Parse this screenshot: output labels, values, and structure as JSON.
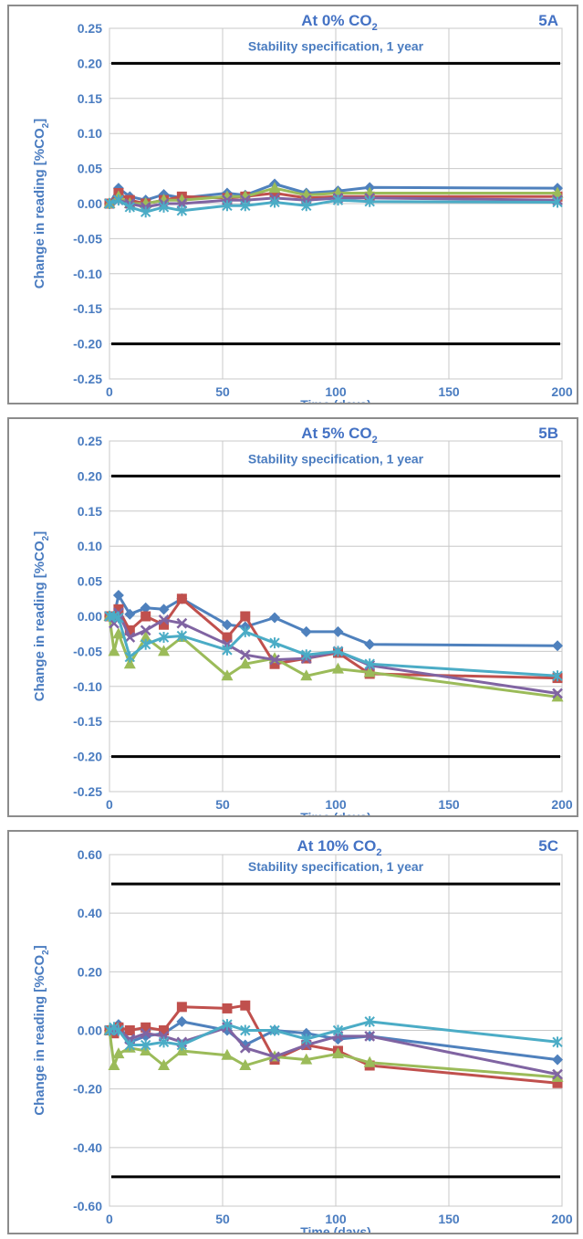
{
  "chart_data": [
    {
      "id": "5A",
      "type": "line",
      "title_main": "At 0% CO",
      "title_sub": "2",
      "tag": "5A",
      "xlabel": "Time (days)",
      "ylabel_main": "Change in reading [%CO",
      "ylabel_sub": "2",
      "ylabel_end": "]",
      "annotation": "Stability specification, 1 year",
      "spec_lines": [
        0.2,
        -0.2
      ],
      "xlim": [
        0,
        200
      ],
      "ylim": [
        -0.25,
        0.25
      ],
      "xticks": [
        "0",
        "50",
        "100",
        "150",
        "200"
      ],
      "yticks": [
        "0.25",
        "0.20",
        "0.15",
        "0.10",
        "0.05",
        "0.00",
        "-0.05",
        "-0.10",
        "-0.15",
        "-0.20",
        "-0.25"
      ],
      "grid": true,
      "series": [
        {
          "color": "#4f81bd",
          "marker": "diamond",
          "x": [
            0,
            4,
            9,
            16,
            24,
            32,
            52,
            60,
            73,
            87,
            101,
            115,
            198
          ],
          "y": [
            0.0,
            0.022,
            0.01,
            0.005,
            0.013,
            0.008,
            0.015,
            0.012,
            0.028,
            0.015,
            0.018,
            0.023,
            0.022
          ]
        },
        {
          "color": "#c0504d",
          "marker": "square",
          "x": [
            0,
            4,
            9,
            16,
            24,
            32,
            52,
            60,
            73,
            87,
            101,
            115,
            198
          ],
          "y": [
            0.0,
            0.015,
            0.005,
            0.0,
            0.005,
            0.01,
            0.008,
            0.01,
            0.015,
            0.008,
            0.01,
            0.01,
            0.01
          ]
        },
        {
          "color": "#9bbb59",
          "marker": "triangle",
          "x": [
            0,
            4,
            9,
            16,
            24,
            32,
            52,
            60,
            73,
            87,
            101,
            115,
            198
          ],
          "y": [
            0.0,
            0.01,
            0.0,
            0.0,
            0.005,
            0.005,
            0.01,
            0.01,
            0.022,
            0.012,
            0.015,
            0.015,
            0.015
          ]
        },
        {
          "color": "#8064a2",
          "marker": "x",
          "x": [
            0,
            4,
            9,
            16,
            24,
            32,
            52,
            60,
            73,
            87,
            101,
            115,
            198
          ],
          "y": [
            0.0,
            0.005,
            0.0,
            -0.005,
            0.0,
            0.0,
            0.005,
            0.005,
            0.008,
            0.005,
            0.008,
            0.008,
            0.005
          ]
        },
        {
          "color": "#4bacc6",
          "marker": "star",
          "x": [
            0,
            4,
            9,
            16,
            24,
            32,
            52,
            60,
            73,
            87,
            101,
            115,
            198
          ],
          "y": [
            0.0,
            0.005,
            -0.005,
            -0.012,
            -0.005,
            -0.01,
            -0.003,
            -0.003,
            0.002,
            -0.003,
            0.005,
            0.003,
            0.002
          ]
        }
      ]
    },
    {
      "id": "5B",
      "type": "line",
      "title_main": "At 5% CO",
      "title_sub": "2",
      "tag": "5B",
      "xlabel": "Time (days)",
      "ylabel_main": "Change in reading [%CO",
      "ylabel_sub": "2",
      "ylabel_end": "]",
      "annotation": "Stability specification, 1 year",
      "spec_lines": [
        0.2,
        -0.2
      ],
      "xlim": [
        0,
        200
      ],
      "ylim": [
        -0.25,
        0.25
      ],
      "xticks": [
        "0",
        "50",
        "100",
        "150",
        "200"
      ],
      "yticks": [
        "0.25",
        "0.20",
        "0.15",
        "0.10",
        "0.05",
        "0.00",
        "-0.05",
        "-0.10",
        "-0.15",
        "-0.20",
        "-0.25"
      ],
      "grid": true,
      "series": [
        {
          "color": "#4f81bd",
          "marker": "diamond",
          "x": [
            0,
            2,
            4,
            9,
            16,
            24,
            32,
            52,
            60,
            73,
            87,
            101,
            115,
            198
          ],
          "y": [
            0.0,
            0.0,
            0.03,
            0.003,
            0.012,
            0.01,
            0.025,
            -0.012,
            -0.015,
            -0.002,
            -0.022,
            -0.022,
            -0.04,
            -0.042
          ]
        },
        {
          "color": "#c0504d",
          "marker": "square",
          "x": [
            0,
            2,
            4,
            9,
            16,
            24,
            32,
            52,
            60,
            73,
            87,
            101,
            115,
            198
          ],
          "y": [
            0.0,
            0.0,
            0.01,
            -0.02,
            0.0,
            -0.012,
            0.025,
            -0.03,
            0.0,
            -0.068,
            -0.06,
            -0.052,
            -0.082,
            -0.088
          ]
        },
        {
          "color": "#9bbb59",
          "marker": "triangle",
          "x": [
            0,
            2,
            4,
            9,
            16,
            24,
            32,
            52,
            60,
            73,
            87,
            101,
            115,
            198
          ],
          "y": [
            0.0,
            -0.05,
            -0.025,
            -0.068,
            -0.03,
            -0.05,
            -0.03,
            -0.085,
            -0.068,
            -0.06,
            -0.085,
            -0.075,
            -0.08,
            -0.115
          ]
        },
        {
          "color": "#8064a2",
          "marker": "x",
          "x": [
            0,
            2,
            4,
            9,
            16,
            24,
            32,
            52,
            60,
            73,
            87,
            101,
            115,
            198
          ],
          "y": [
            0.0,
            -0.01,
            0.005,
            -0.03,
            -0.02,
            -0.005,
            -0.01,
            -0.04,
            -0.055,
            -0.062,
            -0.06,
            -0.05,
            -0.07,
            -0.11
          ]
        },
        {
          "color": "#4bacc6",
          "marker": "star",
          "x": [
            0,
            2,
            4,
            9,
            16,
            24,
            32,
            52,
            60,
            73,
            87,
            101,
            115,
            198
          ],
          "y": [
            0.0,
            0.0,
            -0.002,
            -0.058,
            -0.04,
            -0.03,
            -0.028,
            -0.048,
            -0.022,
            -0.038,
            -0.055,
            -0.05,
            -0.068,
            -0.085
          ]
        }
      ]
    },
    {
      "id": "5C",
      "type": "line",
      "title_main": "At 10% CO",
      "title_sub": "2",
      "tag": "5C",
      "xlabel": "Time (days)",
      "ylabel_main": "Change in reading [%CO",
      "ylabel_sub": "2",
      "ylabel_end": "]",
      "annotation": "Stability specification, 1 year",
      "spec_lines": [
        0.5,
        -0.5
      ],
      "xlim": [
        0,
        200
      ],
      "ylim": [
        -0.6,
        0.6
      ],
      "xticks": [
        "0",
        "50",
        "100",
        "150",
        "200"
      ],
      "yticks": [
        "0.60",
        "0.40",
        "0.20",
        "0.00",
        "-0.20",
        "-0.40",
        "-0.60"
      ],
      "grid": true,
      "series": [
        {
          "color": "#4f81bd",
          "marker": "diamond",
          "x": [
            0,
            2,
            4,
            9,
            16,
            24,
            32,
            52,
            60,
            73,
            87,
            101,
            115,
            198
          ],
          "y": [
            0.0,
            0.0,
            0.02,
            -0.04,
            -0.02,
            -0.01,
            0.03,
            0.0,
            -0.05,
            0.0,
            -0.01,
            -0.03,
            -0.02,
            -0.1
          ]
        },
        {
          "color": "#c0504d",
          "marker": "square",
          "x": [
            0,
            2,
            4,
            9,
            16,
            24,
            32,
            52,
            60,
            73,
            87,
            101,
            115,
            198
          ],
          "y": [
            0.0,
            -0.01,
            0.01,
            0.0,
            0.01,
            0.0,
            0.08,
            0.075,
            0.085,
            -0.1,
            -0.05,
            -0.07,
            -0.12,
            -0.18
          ]
        },
        {
          "color": "#9bbb59",
          "marker": "triangle",
          "x": [
            0,
            2,
            4,
            9,
            16,
            24,
            32,
            52,
            60,
            73,
            87,
            101,
            115,
            198
          ],
          "y": [
            0.0,
            -0.12,
            -0.08,
            -0.06,
            -0.07,
            -0.12,
            -0.07,
            -0.085,
            -0.12,
            -0.09,
            -0.1,
            -0.08,
            -0.11,
            -0.16
          ]
        },
        {
          "color": "#8064a2",
          "marker": "x",
          "x": [
            0,
            2,
            4,
            9,
            16,
            24,
            32,
            52,
            60,
            73,
            87,
            101,
            115,
            198
          ],
          "y": [
            0.0,
            0.0,
            0.0,
            -0.03,
            -0.01,
            -0.02,
            -0.04,
            0.01,
            -0.06,
            -0.09,
            -0.05,
            -0.02,
            -0.02,
            -0.15
          ]
        },
        {
          "color": "#4bacc6",
          "marker": "star",
          "x": [
            0,
            2,
            4,
            9,
            16,
            24,
            32,
            52,
            60,
            73,
            87,
            101,
            115,
            198
          ],
          "y": [
            0.0,
            0.01,
            0.0,
            -0.05,
            -0.05,
            -0.04,
            -0.05,
            0.02,
            0.0,
            0.0,
            -0.03,
            0.0,
            0.03,
            -0.04
          ]
        }
      ]
    }
  ]
}
